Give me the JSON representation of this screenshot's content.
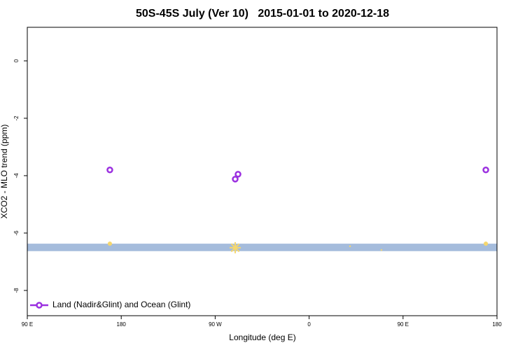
{
  "chart_data": {
    "type": "scatter",
    "title": "50S-45S July (Ver 10)   2015-01-01 to 2020-12-18",
    "xlabel": "Longitude (deg E)",
    "ylabel": "XCO2 - MLO trend (ppm)",
    "xlim": [
      90,
      540
    ],
    "xticks": [
      {
        "value": 90,
        "label": "90 E"
      },
      180,
      {
        "value": 270,
        "label": "90 W"
      },
      {
        "value": 360,
        "label": "0"
      },
      {
        "value": 450,
        "label": "90 E"
      },
      {
        "value": 540,
        "label": "180"
      }
    ],
    "ylim": [
      -8.88,
      1.17
    ],
    "yticks": [
      0,
      -2,
      -4,
      -6,
      -8
    ],
    "band": [
      -6.63,
      -6.37
    ],
    "band_color": "#a5bcdc",
    "series": [
      {
        "name": "Land (Nadir&Glint) and Ocean (Glint)",
        "color": "#9b30e0",
        "x": [
          169.1,
          289.2,
          291.9,
          529.3
        ],
        "values": [
          -3.8,
          -4.12,
          -3.95,
          -3.8
        ]
      }
    ],
    "secondary_points": {
      "color": "#f5d76e",
      "x": [
        169.1,
        289.2,
        399.2,
        429.3,
        529.3
      ],
      "values": [
        -6.37,
        -6.51,
        -6.46,
        -6.59,
        -6.37
      ],
      "sizes": [
        3,
        8,
        1,
        1,
        3
      ]
    },
    "legend": "lower left"
  }
}
